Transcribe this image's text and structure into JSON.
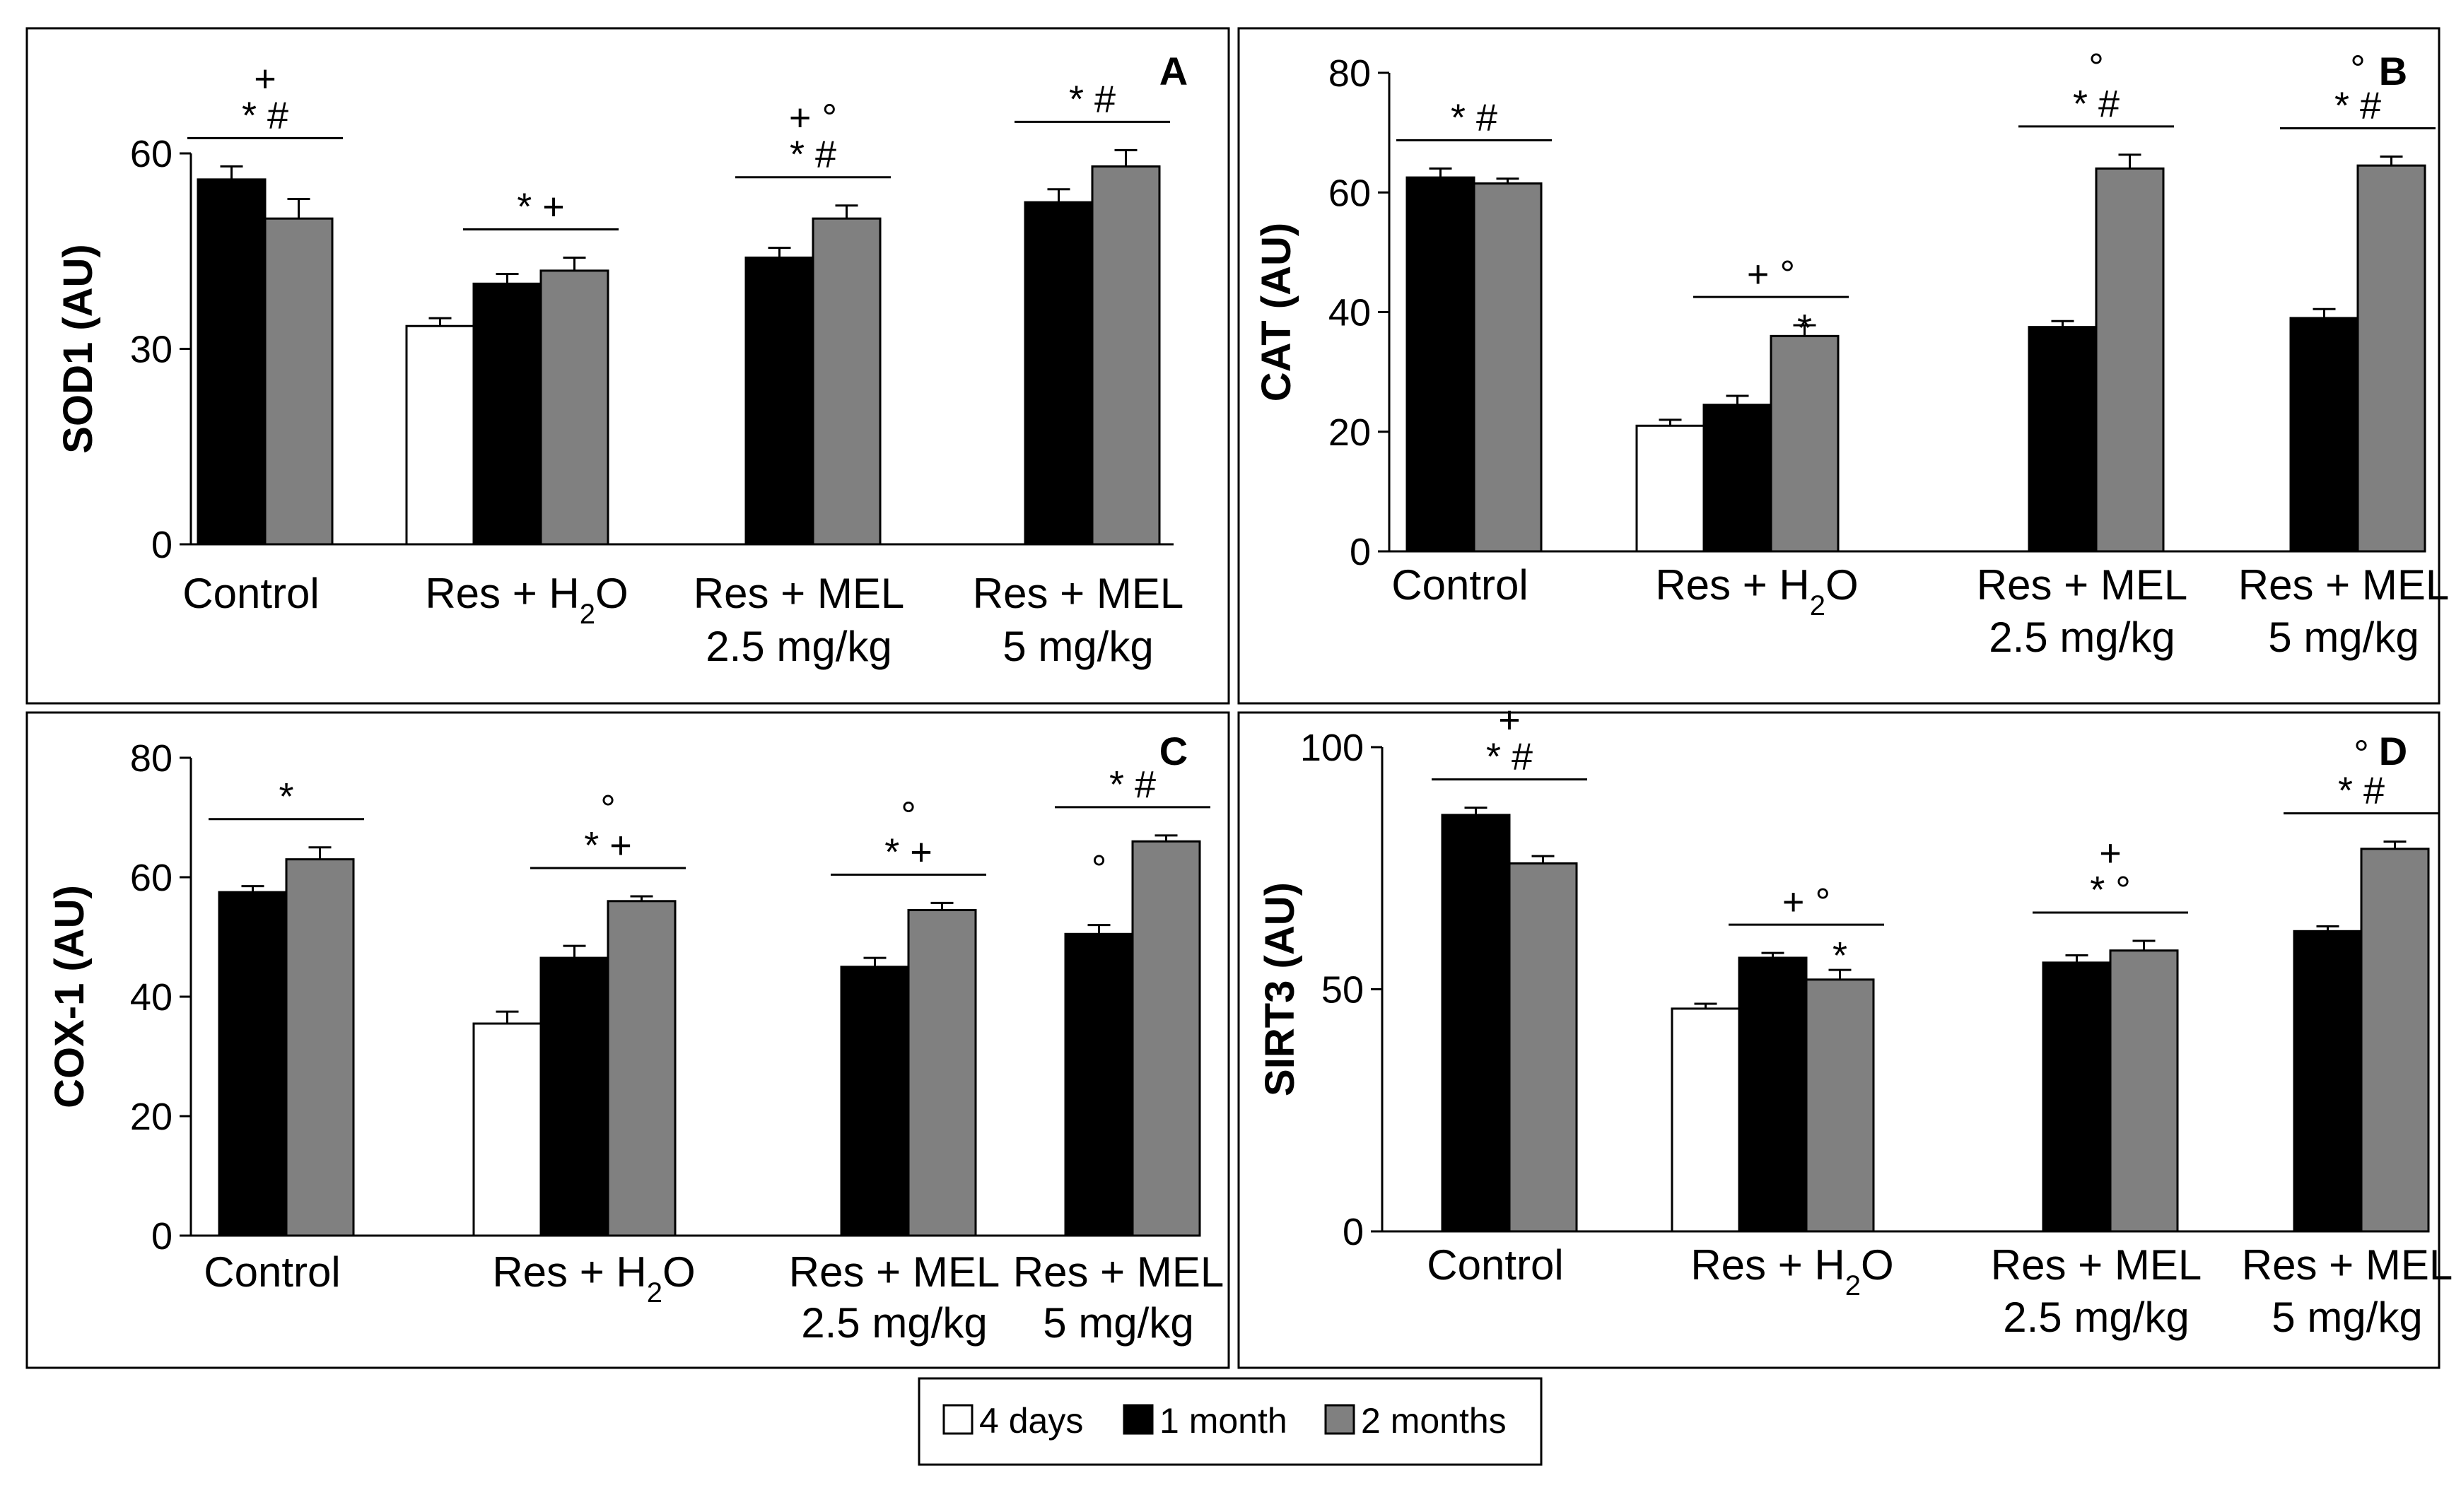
{
  "legend": [
    {
      "label": "4 days",
      "color": "#ffffff"
    },
    {
      "label": "1 month",
      "color": "#000000"
    },
    {
      "label": "2 months",
      "color": "#808080"
    }
  ],
  "chart_data": [
    {
      "type": "bar",
      "panel": "A",
      "ylabel": "SOD1 (AU)",
      "ylim": [
        0,
        60
      ],
      "yticks": [
        "0",
        "30",
        "60"
      ],
      "categories": [
        {
          "line1": "Control",
          "line2": ""
        },
        {
          "line1": "Res + H",
          "sub": "2",
          "tail": "O",
          "line2": ""
        },
        {
          "line1": "Res + MEL",
          "line2": "2.5 mg/kg"
        },
        {
          "line1": "Res + MEL",
          "line2": "5 mg/kg"
        }
      ],
      "series": [
        {
          "name": "4 days",
          "values": [
            null,
            33.5,
            null,
            null
          ],
          "errors": [
            0,
            1.2,
            0,
            0
          ]
        },
        {
          "name": "1 month",
          "values": [
            56,
            40,
            44,
            52.5
          ],
          "errors": [
            2,
            1.5,
            1.5,
            2
          ]
        },
        {
          "name": "2 months",
          "values": [
            50,
            42,
            50,
            58
          ],
          "errors": [
            3,
            2,
            2,
            2.5
          ]
        }
      ],
      "annotations": [
        {
          "group": 0,
          "lines": [
            "+",
            "* #"
          ]
        },
        {
          "group": 1,
          "lines": [
            "* +"
          ]
        },
        {
          "group": 2,
          "lines": [
            "+ °",
            "* #"
          ]
        },
        {
          "group": 3,
          "lines": [
            "* #"
          ]
        }
      ]
    },
    {
      "type": "bar",
      "panel": "B",
      "ylabel": "CAT (AU)",
      "ylim": [
        0,
        80
      ],
      "yticks": [
        "0",
        "20",
        "40",
        "60",
        "80"
      ],
      "categories": [
        {
          "line1": "Control",
          "line2": ""
        },
        {
          "line1": "Res + H",
          "sub": "2",
          "tail": "O",
          "line2": ""
        },
        {
          "line1": "Res + MEL",
          "line2": "2.5 mg/kg"
        },
        {
          "line1": "Res + MEL",
          "line2": "5 mg/kg"
        }
      ],
      "series": [
        {
          "name": "4 days",
          "values": [
            null,
            21,
            null,
            null
          ],
          "errors": [
            0,
            1,
            0,
            0
          ]
        },
        {
          "name": "1 month",
          "values": [
            62.5,
            24.5,
            37.5,
            39
          ],
          "errors": [
            1.5,
            1.5,
            1,
            1.5
          ]
        },
        {
          "name": "2 months",
          "values": [
            61.5,
            36,
            64,
            64.5
          ],
          "errors": [
            0.8,
            1.8,
            2.3,
            1.5
          ]
        }
      ],
      "annotations": [
        {
          "group": 0,
          "lines": [
            "* #"
          ]
        },
        {
          "group": 1,
          "lines": [
            "+ °"
          ],
          "extra": "*"
        },
        {
          "group": 2,
          "lines": [
            "°",
            "* #"
          ]
        },
        {
          "group": 3,
          "lines": [
            "°",
            "* #"
          ]
        }
      ]
    },
    {
      "type": "bar",
      "panel": "C",
      "ylabel": "COX-1 (AU)",
      "ylim": [
        0,
        80
      ],
      "yticks": [
        "0",
        "20",
        "40",
        "60",
        "80"
      ],
      "categories": [
        {
          "line1": "Control",
          "line2": ""
        },
        {
          "line1": "Res + H",
          "sub": "2",
          "tail": "O",
          "line2": ""
        },
        {
          "line1": "Res + MEL",
          "line2": "2.5 mg/kg"
        },
        {
          "line1": "Res + MEL",
          "line2": "5 mg/kg"
        }
      ],
      "series": [
        {
          "name": "4 days",
          "values": [
            null,
            35.5,
            null,
            null
          ],
          "errors": [
            0,
            2,
            0,
            0
          ]
        },
        {
          "name": "1 month",
          "values": [
            57.5,
            46.5,
            45,
            50.5
          ],
          "errors": [
            1,
            2,
            1.5,
            1.5
          ]
        },
        {
          "name": "2 months",
          "values": [
            63,
            56,
            54.5,
            66
          ],
          "errors": [
            2,
            0.8,
            1.2,
            1
          ]
        }
      ],
      "annotations": [
        {
          "group": 0,
          "lines": [
            "*"
          ]
        },
        {
          "group": 1,
          "lines": [
            "°",
            "* +"
          ]
        },
        {
          "group": 2,
          "lines": [
            "°",
            "* +"
          ]
        },
        {
          "group": 3,
          "lines": [
            "* #"
          ],
          "extra": "°"
        }
      ]
    },
    {
      "type": "bar",
      "panel": "D",
      "ylabel": "SIRT3 (AU)",
      "ylim": [
        0,
        100
      ],
      "yticks": [
        "0",
        "50",
        "100"
      ],
      "categories": [
        {
          "line1": "Control",
          "line2": ""
        },
        {
          "line1": "Res + H",
          "sub": "2",
          "tail": "O",
          "line2": ""
        },
        {
          "line1": "Res + MEL",
          "line2": "2.5 mg/kg"
        },
        {
          "line1": "Res + MEL",
          "line2": "5 mg/kg"
        }
      ],
      "series": [
        {
          "name": "4 days",
          "values": [
            null,
            46,
            null,
            null
          ],
          "errors": [
            0,
            1,
            0,
            0
          ]
        },
        {
          "name": "1 month",
          "values": [
            86,
            56.5,
            55.5,
            62
          ],
          "errors": [
            1.5,
            1,
            1.5,
            1
          ]
        },
        {
          "name": "2 months",
          "values": [
            76,
            52,
            58,
            79
          ],
          "errors": [
            1.5,
            2,
            2,
            1.5
          ]
        }
      ],
      "annotations": [
        {
          "group": 0,
          "lines": [
            "+",
            "* #"
          ]
        },
        {
          "group": 1,
          "lines": [
            "+ °"
          ],
          "extra": "*"
        },
        {
          "group": 2,
          "lines": [
            "+",
            "* °"
          ]
        },
        {
          "group": 3,
          "lines": [
            "°",
            "* #"
          ]
        }
      ]
    }
  ]
}
